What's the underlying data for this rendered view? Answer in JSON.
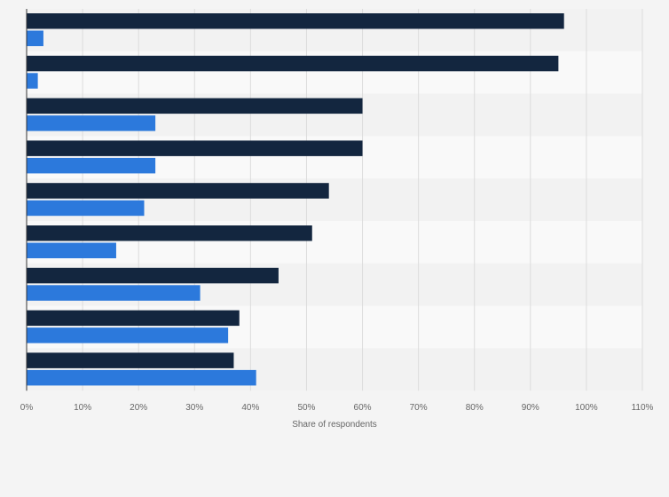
{
  "chart_data": {
    "type": "bar",
    "orientation": "horizontal",
    "categories": [
      "",
      "",
      "",
      "",
      "",
      "",
      "",
      "",
      ""
    ],
    "series": [
      {
        "values": [
          96,
          95,
          60,
          60,
          54,
          51,
          45,
          38,
          37
        ]
      },
      {
        "values": [
          3,
          2,
          23,
          23,
          21,
          16,
          31,
          36,
          41
        ]
      }
    ],
    "xlabel": "Share of respondents",
    "xlim": [
      0,
      110
    ],
    "xticks": [
      0,
      10,
      20,
      30,
      40,
      50,
      60,
      70,
      80,
      90,
      100,
      110
    ],
    "xtick_labels": [
      "0%",
      "10%",
      "20%",
      "30%",
      "40%",
      "50%",
      "60%",
      "70%",
      "80%",
      "90%",
      "100%",
      "110%"
    ],
    "grid": true,
    "colors": {
      "series": [
        "#13263f",
        "#2c79dc"
      ],
      "band_light": "#f9f9f9",
      "band_dark": "#f2f2f2",
      "grid": "#dcdcdc",
      "axis": "#333333"
    }
  }
}
